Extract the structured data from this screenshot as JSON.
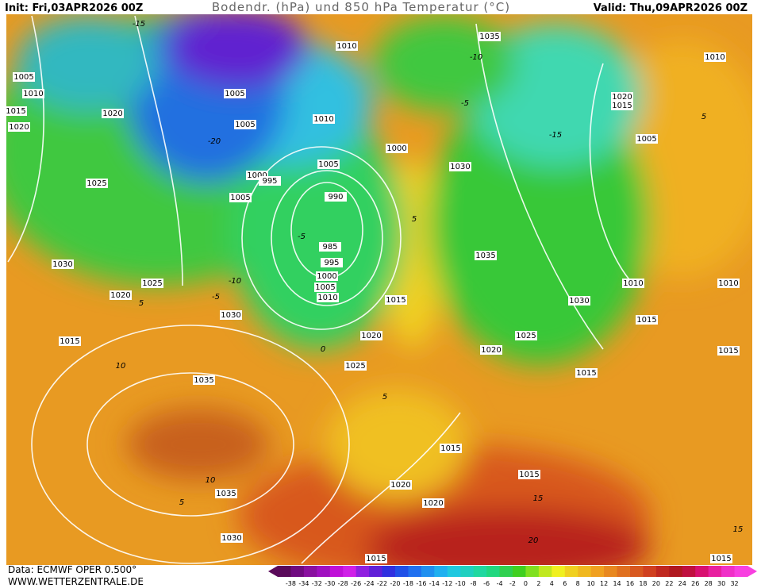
{
  "header": {
    "init": "Init: Fri,03APR2026 00Z",
    "title": "Bodendr. (hPa) und 850 hPa Temperatur (°C)",
    "valid": "Valid: Thu,09APR2026 00Z"
  },
  "footer": {
    "source": "Data: ECMWF OPER 0.500°",
    "site": "WWW.WETTERZENTRALE.DE"
  },
  "isobars": [
    1005,
    1010,
    1015,
    1020,
    1020,
    1025,
    1030,
    1025,
    1020,
    1015,
    1030,
    1035,
    1035,
    1030,
    1005,
    1005,
    1010,
    1010,
    1000,
    1005,
    1000,
    995,
    1005,
    990,
    985,
    995,
    1000,
    1005,
    1010,
    1015,
    1020,
    1025,
    1030,
    1035,
    1035,
    1020,
    1015,
    1005,
    1010,
    1010,
    1030,
    1015,
    1010,
    1015,
    1025,
    1020,
    1015,
    1015,
    1015,
    1020,
    1020,
    1015,
    1015
  ],
  "temperature_labels": [
    -20,
    -15,
    -10,
    -5,
    5,
    10,
    5,
    10,
    0,
    5,
    5,
    -5,
    -10,
    -15,
    5,
    15,
    20,
    15,
    -5
  ],
  "colorbar": {
    "labels": [
      -38,
      -34,
      -32,
      -30,
      -28,
      -26,
      -24,
      -22,
      -20,
      -18,
      -16,
      -14,
      -12,
      -10,
      -8,
      -6,
      -4,
      -2,
      0,
      2,
      4,
      6,
      8,
      10,
      12,
      14,
      16,
      18,
      20,
      22,
      24,
      26,
      28,
      30,
      32
    ]
  }
}
